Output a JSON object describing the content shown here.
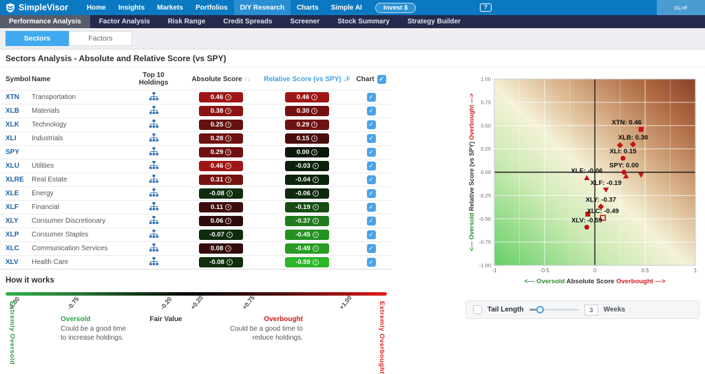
{
  "topbar": {
    "brand": "SimpleVisor",
    "nav": [
      {
        "label": "Home",
        "active": false
      },
      {
        "label": "Insights",
        "active": false
      },
      {
        "label": "Markets",
        "active": false
      },
      {
        "label": "Portfolios",
        "active": false
      },
      {
        "label": "DIY Research",
        "active": true
      },
      {
        "label": "Charts",
        "active": false
      },
      {
        "label": "Simple AI",
        "active": false
      }
    ],
    "invest_label": "Invest $",
    "help_icon": "question-bubble",
    "ticker_button": "CL=F"
  },
  "subnav": [
    {
      "label": "Performance Analysis",
      "active": true
    },
    {
      "label": "Factor Analysis",
      "active": false
    },
    {
      "label": "Risk Range",
      "active": false
    },
    {
      "label": "Credit Spreads",
      "active": false
    },
    {
      "label": "Screener",
      "active": false
    },
    {
      "label": "Stock Summary",
      "active": false
    },
    {
      "label": "Strategy Builder",
      "active": false
    }
  ],
  "tabs": [
    {
      "label": "Sectors",
      "active": true
    },
    {
      "label": "Factors",
      "active": false
    }
  ],
  "section": {
    "title": "Sectors Analysis - Absolute and Relative Score (vs SPY)"
  },
  "table": {
    "headers": {
      "symbol": "Symbol",
      "name": "Name",
      "holdings": "Top 10 Holdings",
      "abs": "Absolute Score",
      "rel": "Relative Score (vs SPY)",
      "chart": "Chart"
    },
    "sort_icon_abs": "↑↓",
    "sort_icon_rel": "↓F",
    "chart_all_checked": true,
    "rows": [
      {
        "symbol": "XTN",
        "name": "Transportation",
        "abs": "0.46",
        "rel": "0.46",
        "checked": true
      },
      {
        "symbol": "XLB",
        "name": "Materials",
        "abs": "0.38",
        "rel": "0.30",
        "checked": true
      },
      {
        "symbol": "XLK",
        "name": "Technology",
        "abs": "0.25",
        "rel": "0.29",
        "checked": true
      },
      {
        "symbol": "XLI",
        "name": "Industrials",
        "abs": "0.28",
        "rel": "0.15",
        "checked": true
      },
      {
        "symbol": "SPY",
        "name": "",
        "abs": "0.29",
        "rel": "0.00",
        "checked": true
      },
      {
        "symbol": "XLU",
        "name": "Utilities",
        "abs": "0.46",
        "rel": "-0.03",
        "checked": true
      },
      {
        "symbol": "XLRE",
        "name": "Real Estate",
        "abs": "0.31",
        "rel": "-0.04",
        "checked": true
      },
      {
        "symbol": "XLE",
        "name": "Energy",
        "abs": "-0.08",
        "rel": "-0.06",
        "checked": true
      },
      {
        "symbol": "XLF",
        "name": "Financial",
        "abs": "0.11",
        "rel": "-0.19",
        "checked": true
      },
      {
        "symbol": "XLY",
        "name": "Consumer Discretionary",
        "abs": "0.06",
        "rel": "-0.37",
        "checked": true
      },
      {
        "symbol": "XLP",
        "name": "Consumer Staples",
        "abs": "-0.07",
        "rel": "-0.45",
        "checked": true
      },
      {
        "symbol": "XLC",
        "name": "Communication Services",
        "abs": "0.08",
        "rel": "-0.49",
        "checked": true
      },
      {
        "symbol": "XLV",
        "name": "Health Care",
        "abs": "-0.08",
        "rel": "-0.59",
        "checked": true
      }
    ]
  },
  "how_it_works": {
    "heading": "How it works",
    "ticks": [
      "-1.00",
      "-0.75",
      "-0.20",
      "+0.20",
      "+0.75",
      "+1.00"
    ],
    "extreme_left": "Extremly Oversold",
    "extreme_right": "Extremly Overbought",
    "oversold_title": "Oversold",
    "oversold_desc": "Could be a good time to increase holdings.",
    "fair_title": "Fair Value",
    "overbought_title": "Overbought",
    "overbought_desc": "Could be a good time to reduce holdings."
  },
  "chart_data": {
    "type": "scatter",
    "marker_color": "#c41414",
    "x_axis": {
      "label": "Absolute Score",
      "min": -1,
      "max": 1,
      "ticks": [
        "-1",
        "-0.5",
        "0",
        "0.5",
        "1"
      ],
      "left_caption": "<--- Oversold",
      "right_caption": "Overbought --->"
    },
    "y_axis": {
      "label": "Relative Score (vs SPY)",
      "min": -1,
      "max": 1,
      "ticks": [
        "1.00",
        "0.75",
        "0.50",
        "0.25",
        "0.00",
        "-0.25",
        "-0.50",
        "-0.75",
        "-1.00"
      ],
      "bottom_caption": "<--- Oversold",
      "top_caption": "Overbought --->"
    },
    "points": [
      {
        "symbol": "XTN",
        "x": 0.46,
        "y": 0.46,
        "marker": "square",
        "label": "XTN: 0.46",
        "ldx": -21
      },
      {
        "symbol": "XLB",
        "x": 0.38,
        "y": 0.3,
        "marker": "diamond",
        "label": "XLB: 0.30",
        "ldx": 0
      },
      {
        "symbol": "XLK",
        "x": 0.25,
        "y": 0.29,
        "marker": "diamond",
        "label": "",
        "ldx": 0
      },
      {
        "symbol": "XLI",
        "x": 0.28,
        "y": 0.15,
        "marker": "circle",
        "label": "XLI: 0.15",
        "ldx": 0
      },
      {
        "symbol": "SPY",
        "x": 0.29,
        "y": 0.0,
        "marker": "circle",
        "label": "SPY: 0.00",
        "ldx": 0
      },
      {
        "symbol": "XLU",
        "x": 0.46,
        "y": -0.03,
        "marker": "triangle-down",
        "label": "",
        "ldx": 0
      },
      {
        "symbol": "XLRE",
        "x": 0.31,
        "y": -0.04,
        "marker": "triangle-up",
        "label": "",
        "ldx": 0
      },
      {
        "symbol": "XLE",
        "x": -0.08,
        "y": -0.06,
        "marker": "triangle-up",
        "label": "XLE: -0.06",
        "ldx": 0
      },
      {
        "symbol": "XLF",
        "x": 0.11,
        "y": -0.19,
        "marker": "triangle-down",
        "label": "XLF: -0.19",
        "ldx": 0
      },
      {
        "symbol": "XLY",
        "x": 0.06,
        "y": -0.37,
        "marker": "diamond",
        "label": "XLY: -0.37",
        "ldx": 0
      },
      {
        "symbol": "XLP",
        "x": -0.07,
        "y": -0.45,
        "marker": "square",
        "label": "",
        "ldx": 0
      },
      {
        "symbol": "XLC",
        "x": 0.08,
        "y": -0.49,
        "marker": "square-open",
        "label": "XLC: -0.49",
        "ldx": 0
      },
      {
        "symbol": "XLV",
        "x": -0.08,
        "y": -0.59,
        "marker": "circle",
        "label": "XLV: -0.59",
        "ldx": 0
      }
    ]
  },
  "tail_control": {
    "label": "Tail Length",
    "value": "3",
    "unit": "Weeks",
    "checked": false
  },
  "colors": {
    "topbar": "#0b79c1",
    "subnav": "#252a4d",
    "tab_active": "#41a9ef",
    "checkbox": "#4aa3e8",
    "marker": "#c41414",
    "oversold_green": "#2ea043",
    "overbought_red": "#cc1b1b"
  }
}
